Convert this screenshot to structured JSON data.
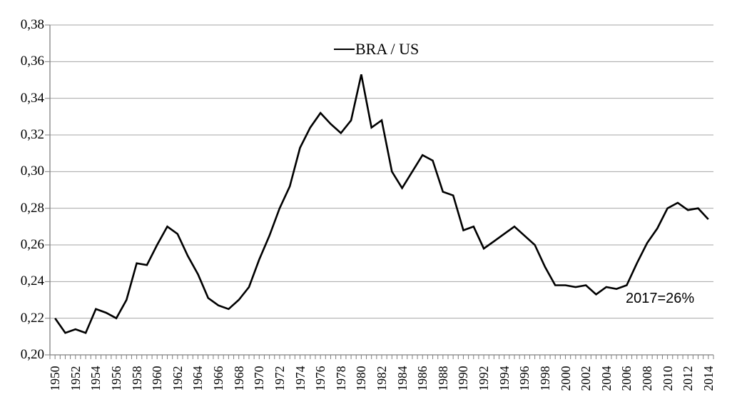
{
  "colors": {
    "line": "#000000",
    "grid": "#a6a6a6",
    "axis": "#808080",
    "background": "#ffffff",
    "text": "#000000"
  },
  "chart_data": {
    "type": "line",
    "title": "",
    "legend_label": "BRA / US",
    "legend_position": "top-center",
    "annotation": "2017=26%",
    "grid": "horizontal",
    "decimal_separator": ",",
    "xlabel": "",
    "ylabel": "",
    "ylim": [
      0.2,
      0.38
    ],
    "ytick_step": 0.02,
    "ytick_labels": [
      "0,38",
      "0,36",
      "0,34",
      "0,32",
      "0,30",
      "0,28",
      "0,26",
      "0,24",
      "0,22",
      "0,20"
    ],
    "xtick_labels": [
      "1950",
      "1952",
      "1954",
      "1956",
      "1958",
      "1960",
      "1962",
      "1964",
      "1966",
      "1968",
      "1970",
      "1972",
      "1974",
      "1976",
      "1978",
      "1980",
      "1982",
      "1984",
      "1986",
      "1988",
      "1990",
      "1992",
      "1994",
      "1996",
      "1998",
      "2000",
      "2002",
      "2004",
      "2006",
      "2008",
      "2010",
      "2012",
      "2014"
    ],
    "x": [
      1950,
      1951,
      1952,
      1953,
      1954,
      1955,
      1956,
      1957,
      1958,
      1959,
      1960,
      1961,
      1962,
      1963,
      1964,
      1965,
      1966,
      1967,
      1968,
      1969,
      1970,
      1971,
      1972,
      1973,
      1974,
      1975,
      1976,
      1977,
      1978,
      1979,
      1980,
      1981,
      1982,
      1983,
      1984,
      1985,
      1986,
      1987,
      1988,
      1989,
      1990,
      1991,
      1992,
      1993,
      1994,
      1995,
      1996,
      1997,
      1998,
      1999,
      2000,
      2001,
      2002,
      2003,
      2004,
      2005,
      2006,
      2007,
      2008,
      2009,
      2010,
      2011,
      2012,
      2013,
      2014
    ],
    "values": [
      0.22,
      0.212,
      0.214,
      0.212,
      0.225,
      0.223,
      0.22,
      0.23,
      0.25,
      0.249,
      0.26,
      0.27,
      0.266,
      0.254,
      0.244,
      0.231,
      0.227,
      0.225,
      0.23,
      0.237,
      0.252,
      0.265,
      0.28,
      0.292,
      0.313,
      0.324,
      0.332,
      0.326,
      0.321,
      0.328,
      0.353,
      0.324,
      0.328,
      0.3,
      0.291,
      0.3,
      0.309,
      0.306,
      0.289,
      0.287,
      0.268,
      0.27,
      0.258,
      0.262,
      0.266,
      0.27,
      0.265,
      0.26,
      0.248,
      0.238,
      0.238,
      0.237,
      0.238,
      0.233,
      0.237,
      0.236,
      0.238,
      0.25,
      0.261,
      0.269,
      0.28,
      0.283,
      0.279,
      0.28,
      0.274
    ]
  }
}
